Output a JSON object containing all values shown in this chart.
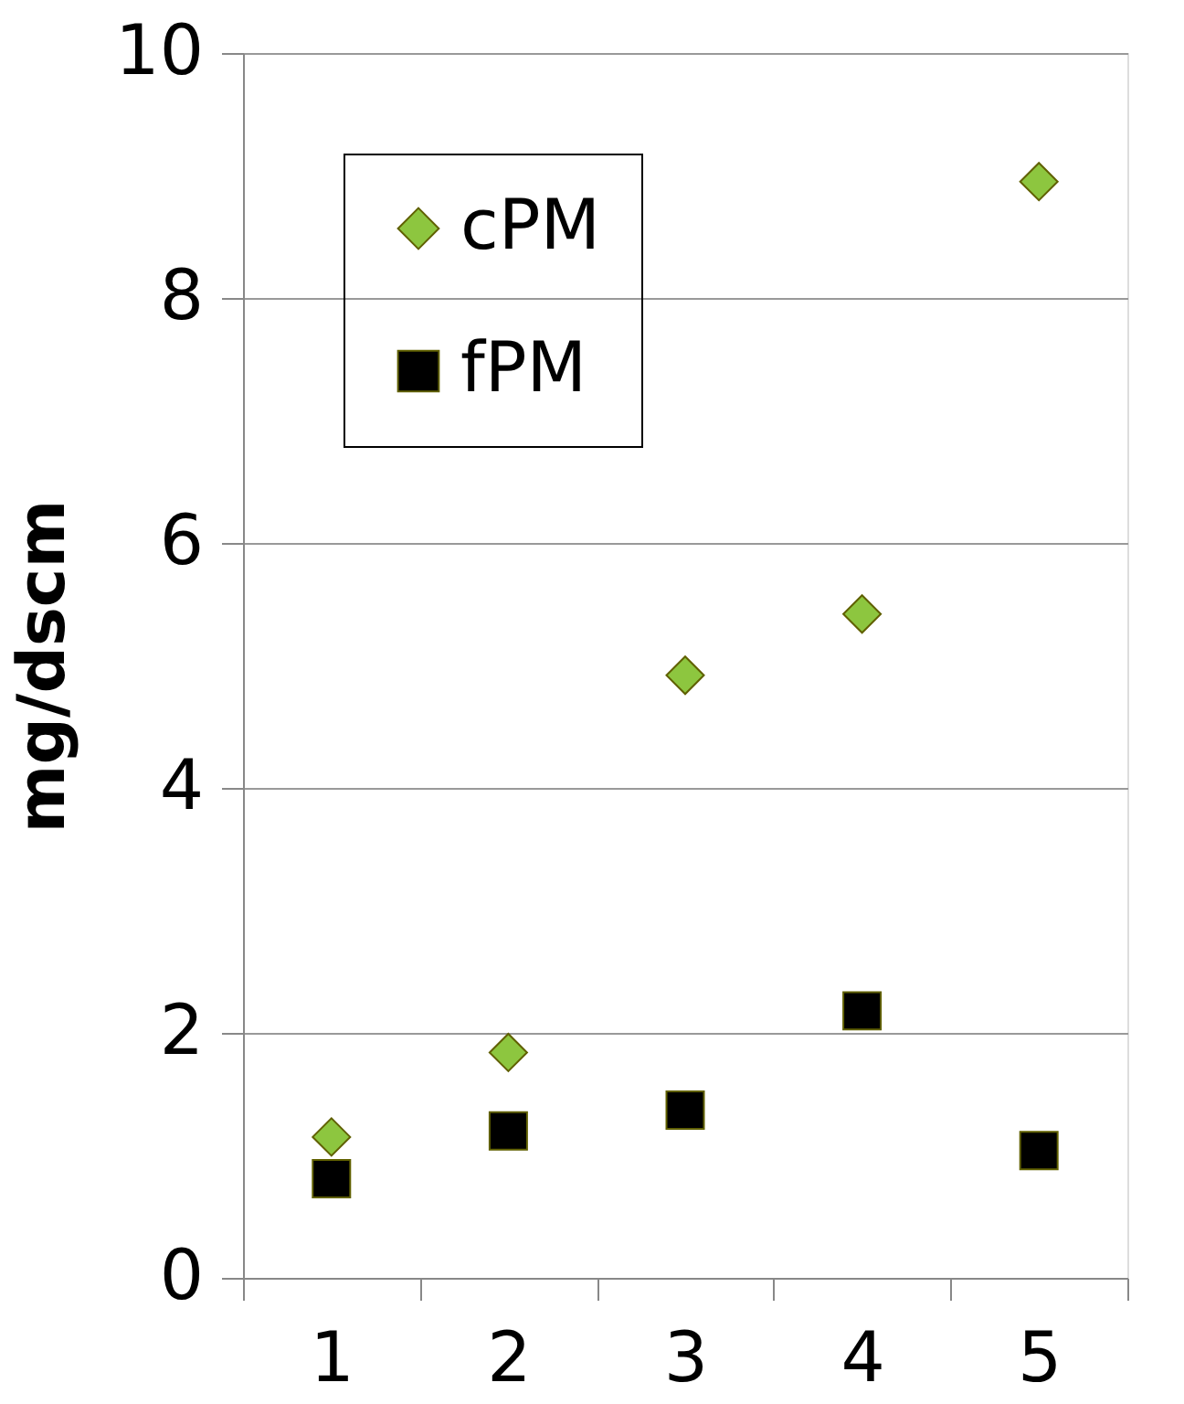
{
  "chart_data": {
    "type": "scatter",
    "ylabel": "mg/dscm",
    "categories": [
      "1",
      "2",
      "3",
      "4",
      "5"
    ],
    "series": [
      {
        "name": "cPM",
        "color": "#8dc63f",
        "marker": "diamond",
        "values": [
          1.15,
          1.84,
          4.92,
          5.42,
          8.95
        ]
      },
      {
        "name": "fPM",
        "color": "#000000",
        "marker": "square",
        "values": [
          0.81,
          1.2,
          1.37,
          2.18,
          1.04
        ]
      }
    ],
    "ylim": [
      0,
      10
    ],
    "yticks": [
      0,
      2,
      4,
      6,
      8,
      10
    ],
    "grid": "y",
    "legend": "top left"
  }
}
